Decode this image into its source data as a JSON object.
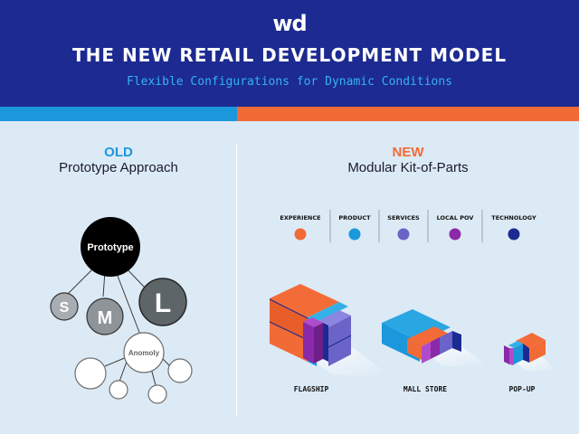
{
  "header": {
    "logo": "wd",
    "title": "THE NEW RETAIL DEVELOPMENT MODEL",
    "subtitle": "Flexible Configurations for Dynamic Conditions"
  },
  "old": {
    "tag": "OLD",
    "name": "Prototype Approach",
    "prototype": "Prototype",
    "small": "S",
    "medium": "M",
    "large": "L",
    "anomaly": "Anomoly"
  },
  "new": {
    "tag": "NEW",
    "name": "Modular Kit-of-Parts",
    "legend": [
      {
        "label": "EXPERIENCE",
        "color": "#f26a36"
      },
      {
        "label": "PRODUCT",
        "color": "#1b97dc"
      },
      {
        "label": "SERVICES",
        "color": "#6a63c8"
      },
      {
        "label": "LOCAL POV",
        "color": "#8a2aa8"
      },
      {
        "label": "TECHNOLOGY",
        "color": "#1c2a91"
      }
    ],
    "stores": {
      "flagship": "FLAGSHIP",
      "mall": "MALL STORE",
      "popup": "POP-UP"
    }
  },
  "colors": {
    "navy": "#1c2a91",
    "blue": "#1b97dc",
    "orange": "#f26a36",
    "background": "#dceaf5"
  }
}
